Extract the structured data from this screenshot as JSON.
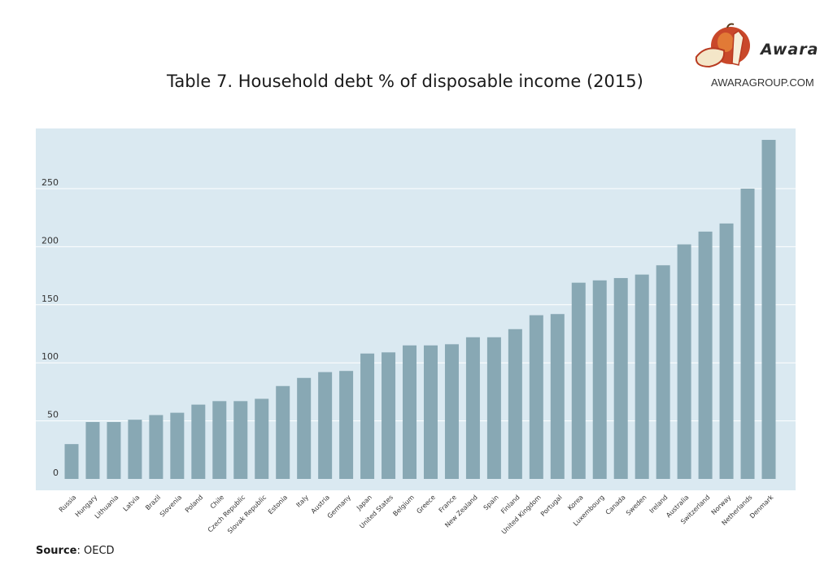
{
  "title": "Table 7.  Household debt % of disposable income (2015)",
  "brand": {
    "name": "Awara",
    "url": "AWARAGROUP.COM"
  },
  "source": {
    "label": "Source",
    "value": ": OECD"
  },
  "colors": {
    "plot_bg": "#dae9f1",
    "bar": "#88a8b4",
    "grid": "#ffffff",
    "tick_text": "#333333"
  },
  "chart_data": {
    "type": "bar",
    "categories": [
      "Russia",
      "Hungary",
      "Lithuania",
      "Latvia",
      "Brazil",
      "Slovenia",
      "Poland",
      "Chile",
      "Czech Republic",
      "Slovak Republic",
      "Estonia",
      "Italy",
      "Austria",
      "Germany",
      "Japan",
      "United States",
      "Belgium",
      "Greece",
      "France",
      "New Zealand",
      "Spain",
      "Finland",
      "United Kingdom",
      "Portugal",
      "Korea",
      "Luxembourg",
      "Canada",
      "Sweden",
      "Ireland",
      "Australia",
      "Switzerland",
      "Norway",
      "Netherlands",
      "Denmark"
    ],
    "values": [
      30,
      49,
      49,
      51,
      55,
      57,
      64,
      67,
      67,
      69,
      80,
      87,
      92,
      93,
      108,
      109,
      115,
      115,
      116,
      122,
      122,
      129,
      141,
      142,
      169,
      171,
      173,
      176,
      184,
      202,
      213,
      220,
      250,
      292
    ],
    "title": "Table 7.  Household debt % of disposable income (2015)",
    "xlabel": "",
    "ylabel": "",
    "ylim": [
      0,
      300
    ],
    "yticks": [
      0,
      50,
      100,
      150,
      200,
      250
    ],
    "grid": true,
    "legend": "none"
  }
}
